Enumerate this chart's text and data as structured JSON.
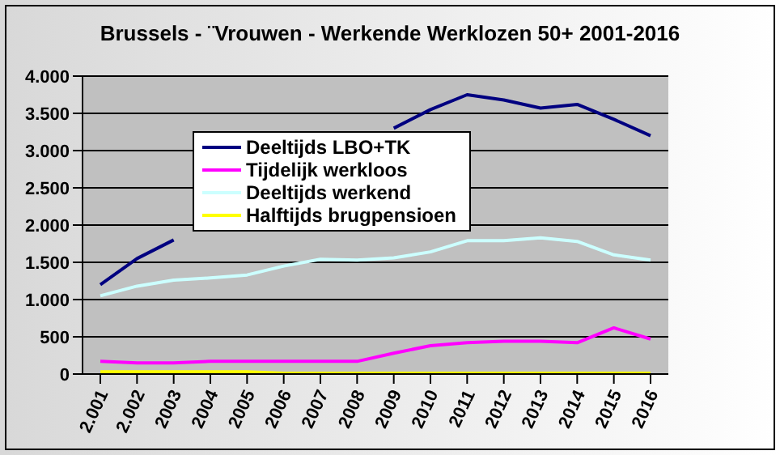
{
  "chart_data": {
    "type": "line",
    "title": "Brussels - ¨Vrouwen -  Werkende Werklozen 50+ 2001-2016",
    "categories": [
      "2.001",
      "2.002",
      "2003",
      "2004",
      "2005",
      "2006",
      "2007",
      "2008",
      "2009",
      "2010",
      "2011",
      "2012",
      "2013",
      "2014",
      "2015",
      "2016"
    ],
    "series": [
      {
        "name": "Deeltijds LBO+TK",
        "color": "#000080",
        "values": [
          1200,
          1550,
          1800,
          null,
          null,
          null,
          null,
          null,
          3300,
          3550,
          3750,
          3680,
          3570,
          3620,
          3420,
          3200
        ]
      },
      {
        "name": "Tijdelijk werkloos",
        "color": "#ff00ff",
        "values": [
          170,
          150,
          150,
          170,
          170,
          170,
          170,
          170,
          280,
          380,
          420,
          440,
          440,
          420,
          620,
          470
        ]
      },
      {
        "name": "Deeltijds werkend",
        "color": "#ccffff",
        "values": [
          1050,
          1180,
          1260,
          1290,
          1330,
          1450,
          1540,
          1530,
          1560,
          1640,
          1790,
          1790,
          1830,
          1780,
          1600,
          1530
        ]
      },
      {
        "name": "Halftijds brugpensioen",
        "color": "#ffff00",
        "values": [
          30,
          30,
          30,
          30,
          30,
          10,
          10,
          10,
          10,
          10,
          10,
          10,
          10,
          10,
          10,
          10
        ]
      }
    ],
    "ylim": [
      0,
      4000
    ],
    "yticks": [
      0,
      500,
      {
        "value": 1000,
        "label": "1.000"
      },
      {
        "value": 1500,
        "label": "1.500"
      },
      {
        "value": 2000,
        "label": "2.000"
      },
      {
        "value": 2500,
        "label": "2.500"
      },
      {
        "value": 3000,
        "label": "3.000"
      },
      {
        "value": 3500,
        "label": "3.500"
      },
      {
        "value": 4000,
        "label": "4.000"
      }
    ],
    "grid": "y",
    "legend": "top left",
    "marker": "none",
    "line_style": "solid"
  }
}
